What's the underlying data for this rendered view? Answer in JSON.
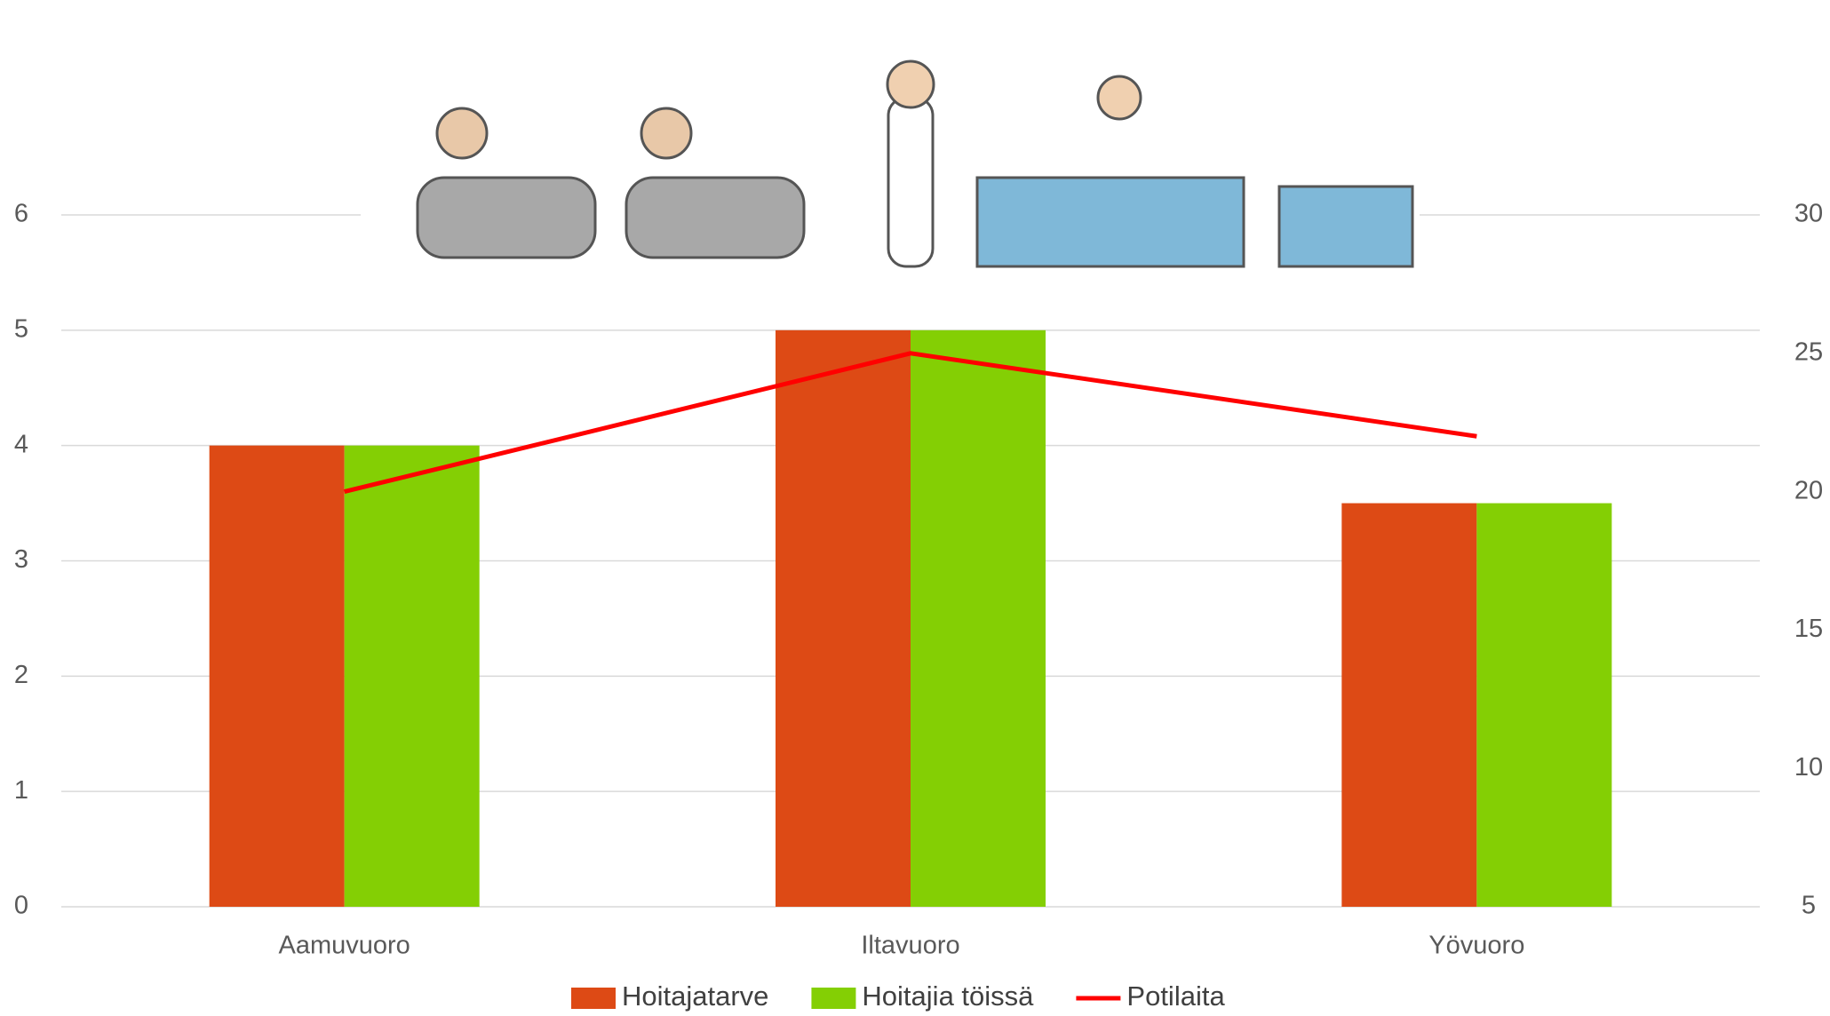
{
  "chart_data": {
    "type": "bar",
    "categories": [
      "Aamuvuoro",
      "Iltavuoro",
      "Yövuoro"
    ],
    "series": [
      {
        "name": "Hoitajatarve",
        "color": "#dd4a15",
        "values": [
          4,
          5,
          3.5
        ]
      },
      {
        "name": "Hoitajia töissä",
        "color": "#84cf04",
        "values": [
          4,
          5,
          3.5
        ]
      },
      {
        "name": "Potilaita",
        "color": "#ff0000",
        "type": "line",
        "axis": "y2",
        "values": [
          20,
          25,
          22
        ]
      }
    ],
    "ylim": [
      0,
      6
    ],
    "yticks": [
      0,
      1,
      2,
      3,
      4,
      5,
      6
    ],
    "y2lim": [
      5,
      30
    ],
    "y2ticks": [
      5,
      10,
      15,
      20,
      25,
      30
    ],
    "grid": true,
    "legend": "bottom"
  }
}
